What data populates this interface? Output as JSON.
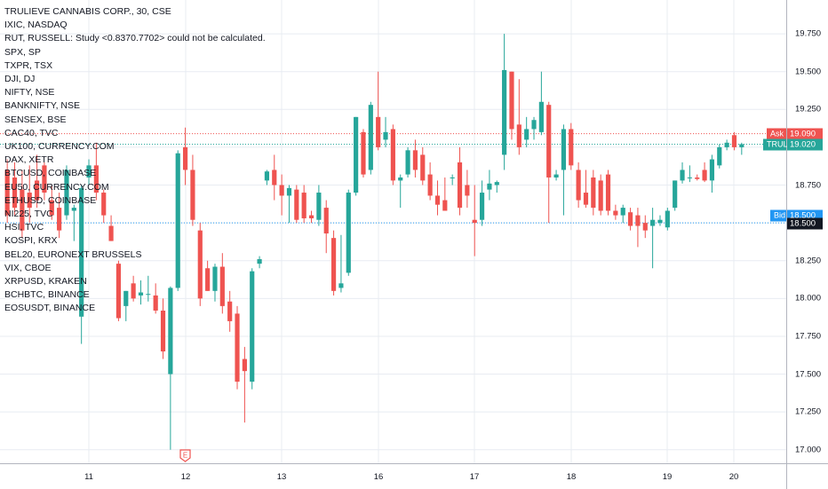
{
  "legend": [
    "TRULIEVE CANNABIS CORP., 30, CSE",
    "IXIC, NASDAQ",
    "RUT, RUSSELL: Study <0.8370.7702> could not be calculated.",
    "SPX, SP",
    "TXPR, TSX",
    "DJI, DJ",
    "NIFTY, NSE",
    "BANKNIFTY, NSE",
    "SENSEX, BSE",
    "CAC40, TVC",
    "UK100, CURRENCY.COM",
    "DAX, XETR",
    "BTCUSD, COINBASE",
    "EU50, CURRENCY.COM",
    "ETHUSD, COINBASE",
    "NI225, TVC",
    "HSI, TVC",
    "KOSPI, KRX",
    "BEL20, EURONEXT BRUSSELS",
    "VIX, CBOE",
    "XRPUSD, KRAKEN",
    "BCHBTC, BINANCE",
    "EOSUSDT, BINANCE"
  ],
  "price_axis": {
    "ticks": [
      "19.750",
      "19.500",
      "19.250",
      "19.000",
      "18.750",
      "18.500",
      "18.250",
      "18.000",
      "17.750",
      "17.500",
      "17.250",
      "17.000"
    ],
    "tick_values": [
      19.75,
      19.5,
      19.25,
      19.0,
      18.75,
      18.5,
      18.25,
      18.0,
      17.75,
      17.5,
      17.25,
      17.0
    ]
  },
  "time_axis": {
    "labels": [
      "11",
      "12",
      "13",
      "16",
      "17",
      "18",
      "19",
      "20"
    ]
  },
  "tags": {
    "ask_label": "Ask",
    "ask_value": "19.090",
    "ask_num": 19.09,
    "symbol_label": "TRUL",
    "last_value": "19.020",
    "last_num": 19.02,
    "bid_label": "Bid",
    "bid_value": "18.500",
    "bid_num": 18.5,
    "line_value": "18.500"
  },
  "earnings_marker": "E",
  "colors": {
    "up": "#26a69a",
    "down": "#ef5350",
    "ask": "#ef5350",
    "bid": "#2196f3",
    "last": "#26a69a",
    "line": "#131722",
    "grid": "#e8ecf2"
  },
  "chart_data": {
    "type": "candlestick",
    "symbol": "TRULIEVE CANNABIS CORP.",
    "interval": "30",
    "ylim": [
      16.94,
      19.95
    ],
    "day_labels": [
      "11",
      "12",
      "13",
      "16",
      "17",
      "18",
      "19",
      "20"
    ],
    "candles": [
      {
        "o": 18.85,
        "h": 18.92,
        "l": 18.5,
        "c": 18.55
      },
      {
        "o": 18.8,
        "h": 18.9,
        "l": 18.55,
        "c": 18.6
      },
      {
        "o": 18.72,
        "h": 18.85,
        "l": 18.4,
        "c": 18.45
      },
      {
        "o": 18.7,
        "h": 18.88,
        "l": 18.5,
        "c": 18.6
      },
      {
        "o": 18.78,
        "h": 18.95,
        "l": 18.6,
        "c": 18.65
      },
      {
        "o": 18.88,
        "h": 18.9,
        "l": 18.65,
        "c": 18.7
      },
      {
        "o": 18.65,
        "h": 18.75,
        "l": 18.52,
        "c": 18.55
      },
      {
        "o": 18.6,
        "h": 18.7,
        "l": 18.4,
        "c": 18.45
      },
      {
        "o": 18.55,
        "h": 18.88,
        "l": 18.52,
        "c": 18.85
      },
      {
        "o": 18.58,
        "h": 18.62,
        "l": 18.38,
        "c": 18.6
      },
      {
        "o": 17.88,
        "h": 18.75,
        "l": 17.7,
        "c": 18.73
      },
      {
        "o": 18.8,
        "h": 18.92,
        "l": 18.75,
        "c": 18.88
      },
      {
        "o": 18.88,
        "h": 19.03,
        "l": 18.65,
        "c": 18.7
      },
      {
        "o": 18.7,
        "h": 18.72,
        "l": 18.5,
        "c": 18.55
      },
      {
        "o": 18.48,
        "h": 18.55,
        "l": 18.38,
        "c": 18.38
      },
      {
        "o": 18.23,
        "h": 18.25,
        "l": 17.85,
        "c": 17.87
      },
      {
        "o": 17.95,
        "h": 18.05,
        "l": 17.85,
        "c": 18.05
      },
      {
        "o": 18.1,
        "h": 18.15,
        "l": 17.98,
        "c": 18.0
      },
      {
        "o": 18.02,
        "h": 18.12,
        "l": 17.96,
        "c": 18.04
      },
      {
        "o": 18.03,
        "h": 18.15,
        "l": 17.98,
        "c": 18.03
      },
      {
        "o": 18.02,
        "h": 18.1,
        "l": 17.9,
        "c": 17.92
      },
      {
        "o": 17.92,
        "h": 18.0,
        "l": 17.6,
        "c": 17.65
      },
      {
        "o": 17.5,
        "h": 18.08,
        "l": 17.0,
        "c": 18.07
      },
      {
        "o": 18.07,
        "h": 18.98,
        "l": 18.05,
        "c": 18.96
      },
      {
        "o": 19.0,
        "h": 19.13,
        "l": 18.75,
        "c": 18.85
      },
      {
        "o": 18.85,
        "h": 18.95,
        "l": 18.48,
        "c": 18.52
      },
      {
        "o": 18.45,
        "h": 18.5,
        "l": 17.95,
        "c": 18.0
      },
      {
        "o": 18.2,
        "h": 18.25,
        "l": 18.05,
        "c": 18.05
      },
      {
        "o": 18.05,
        "h": 18.23,
        "l": 17.98,
        "c": 18.21
      },
      {
        "o": 18.21,
        "h": 18.3,
        "l": 17.9,
        "c": 17.95
      },
      {
        "o": 17.98,
        "h": 18.05,
        "l": 17.78,
        "c": 17.85
      },
      {
        "o": 17.9,
        "h": 17.95,
        "l": 17.4,
        "c": 17.45
      },
      {
        "o": 17.6,
        "h": 17.68,
        "l": 17.18,
        "c": 17.52
      },
      {
        "o": 17.45,
        "h": 18.2,
        "l": 17.4,
        "c": 18.18
      },
      {
        "o": 18.23,
        "h": 18.28,
        "l": 18.2,
        "c": 18.26
      },
      {
        "o": 18.78,
        "h": 18.85,
        "l": 18.75,
        "c": 18.84
      },
      {
        "o": 18.85,
        "h": 18.95,
        "l": 18.65,
        "c": 18.75
      },
      {
        "o": 18.75,
        "h": 18.82,
        "l": 18.55,
        "c": 18.68
      },
      {
        "o": 18.68,
        "h": 18.75,
        "l": 18.5,
        "c": 18.73
      },
      {
        "o": 18.72,
        "h": 18.75,
        "l": 18.5,
        "c": 18.52
      },
      {
        "o": 18.7,
        "h": 18.75,
        "l": 18.5,
        "c": 18.53
      },
      {
        "o": 18.55,
        "h": 18.58,
        "l": 18.5,
        "c": 18.53
      },
      {
        "o": 18.52,
        "h": 18.75,
        "l": 18.48,
        "c": 18.7
      },
      {
        "o": 18.6,
        "h": 18.65,
        "l": 18.3,
        "c": 18.43
      },
      {
        "o": 18.4,
        "h": 18.45,
        "l": 18.02,
        "c": 18.05
      },
      {
        "o": 18.07,
        "h": 18.42,
        "l": 18.04,
        "c": 18.1
      },
      {
        "o": 18.17,
        "h": 18.72,
        "l": 18.15,
        "c": 18.7
      },
      {
        "o": 18.7,
        "h": 19.2,
        "l": 18.68,
        "c": 19.2
      },
      {
        "o": 19.1,
        "h": 19.12,
        "l": 18.8,
        "c": 18.82
      },
      {
        "o": 18.85,
        "h": 19.3,
        "l": 18.82,
        "c": 19.28
      },
      {
        "o": 19.2,
        "h": 19.5,
        "l": 18.98,
        "c": 19.0
      },
      {
        "o": 19.05,
        "h": 19.2,
        "l": 19.0,
        "c": 19.1
      },
      {
        "o": 19.12,
        "h": 19.15,
        "l": 18.75,
        "c": 18.78
      },
      {
        "o": 18.78,
        "h": 18.82,
        "l": 18.6,
        "c": 18.8
      },
      {
        "o": 18.82,
        "h": 19.0,
        "l": 18.8,
        "c": 18.98
      },
      {
        "o": 18.98,
        "h": 19.05,
        "l": 18.8,
        "c": 18.85
      },
      {
        "o": 18.95,
        "h": 19.0,
        "l": 18.75,
        "c": 18.78
      },
      {
        "o": 18.82,
        "h": 18.9,
        "l": 18.65,
        "c": 18.68
      },
      {
        "o": 18.68,
        "h": 18.78,
        "l": 18.55,
        "c": 18.62
      },
      {
        "o": 18.65,
        "h": 18.8,
        "l": 18.58,
        "c": 18.58
      },
      {
        "o": 18.8,
        "h": 18.82,
        "l": 18.75,
        "c": 18.8
      },
      {
        "o": 18.9,
        "h": 19.0,
        "l": 18.55,
        "c": 18.6
      },
      {
        "o": 18.75,
        "h": 18.85,
        "l": 18.6,
        "c": 18.68
      },
      {
        "o": 18.52,
        "h": 18.75,
        "l": 18.28,
        "c": 18.5
      },
      {
        "o": 18.52,
        "h": 18.78,
        "l": 18.48,
        "c": 18.7
      },
      {
        "o": 18.72,
        "h": 18.85,
        "l": 18.65,
        "c": 18.76
      },
      {
        "o": 18.75,
        "h": 18.78,
        "l": 18.7,
        "c": 18.77
      },
      {
        "o": 18.95,
        "h": 19.75,
        "l": 18.85,
        "c": 19.51
      },
      {
        "o": 19.5,
        "h": 19.5,
        "l": 19.05,
        "c": 19.12
      },
      {
        "o": 19.15,
        "h": 19.45,
        "l": 18.95,
        "c": 19.0
      },
      {
        "o": 19.05,
        "h": 19.2,
        "l": 19.0,
        "c": 19.12
      },
      {
        "o": 19.12,
        "h": 19.2,
        "l": 19.05,
        "c": 19.18
      },
      {
        "o": 19.1,
        "h": 19.5,
        "l": 19.08,
        "c": 19.3
      },
      {
        "o": 19.28,
        "h": 19.3,
        "l": 18.5,
        "c": 18.8
      },
      {
        "o": 18.8,
        "h": 18.85,
        "l": 18.78,
        "c": 18.82
      },
      {
        "o": 18.85,
        "h": 19.15,
        "l": 18.55,
        "c": 19.12
      },
      {
        "o": 19.12,
        "h": 19.16,
        "l": 18.85,
        "c": 18.88
      },
      {
        "o": 18.85,
        "h": 18.9,
        "l": 18.6,
        "c": 18.65
      },
      {
        "o": 18.7,
        "h": 18.85,
        "l": 18.6,
        "c": 18.62
      },
      {
        "o": 18.8,
        "h": 18.85,
        "l": 18.55,
        "c": 18.6
      },
      {
        "o": 18.78,
        "h": 18.82,
        "l": 18.55,
        "c": 18.58
      },
      {
        "o": 18.82,
        "h": 18.85,
        "l": 18.55,
        "c": 18.58
      },
      {
        "o": 18.58,
        "h": 18.62,
        "l": 18.52,
        "c": 18.55
      },
      {
        "o": 18.55,
        "h": 18.62,
        "l": 18.5,
        "c": 18.6
      },
      {
        "o": 18.57,
        "h": 18.6,
        "l": 18.45,
        "c": 18.48
      },
      {
        "o": 18.55,
        "h": 18.6,
        "l": 18.34,
        "c": 18.48
      },
      {
        "o": 18.5,
        "h": 18.55,
        "l": 18.4,
        "c": 18.45
      },
      {
        "o": 18.48,
        "h": 18.6,
        "l": 18.2,
        "c": 18.52
      },
      {
        "o": 18.5,
        "h": 18.55,
        "l": 18.48,
        "c": 18.52
      },
      {
        "o": 18.47,
        "h": 18.6,
        "l": 18.45,
        "c": 18.58
      },
      {
        "o": 18.6,
        "h": 18.78,
        "l": 18.58,
        "c": 18.78
      },
      {
        "o": 18.78,
        "h": 18.9,
        "l": 18.76,
        "c": 18.85
      },
      {
        "o": 18.8,
        "h": 18.88,
        "l": 18.77,
        "c": 18.8
      },
      {
        "o": 18.8,
        "h": 18.82,
        "l": 18.78,
        "c": 18.79
      },
      {
        "o": 18.85,
        "h": 18.9,
        "l": 18.77,
        "c": 18.78
      },
      {
        "o": 18.78,
        "h": 18.95,
        "l": 18.7,
        "c": 18.92
      },
      {
        "o": 18.88,
        "h": 19.02,
        "l": 18.86,
        "c": 19.0
      },
      {
        "o": 19.0,
        "h": 19.05,
        "l": 18.98,
        "c": 19.03
      },
      {
        "o": 19.08,
        "h": 19.1,
        "l": 18.98,
        "c": 19.0
      },
      {
        "o": 19.0,
        "h": 19.03,
        "l": 18.95,
        "c": 19.02
      }
    ]
  }
}
